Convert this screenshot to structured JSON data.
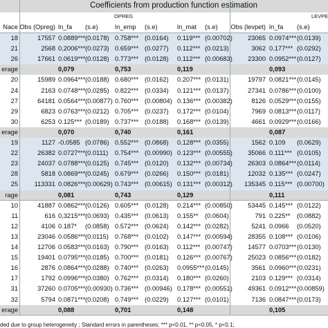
{
  "header": {
    "title": "Coefficients from production function estimation",
    "opreg": "OPREG",
    "levpet": "LEVPET",
    "columns": [
      "Nace",
      "Obs (Opreg)",
      "ln_fa",
      "(s.e)",
      "ln_emp",
      "(s.e)",
      "ln_mat",
      "(s.e)",
      "Obs (levpet)",
      "ln_fa",
      "(s.e)"
    ]
  },
  "groups": [
    {
      "rows": [
        [
          "18",
          "17557",
          "0.0889***",
          "(0.0178)",
          "0.758***",
          "(0.0164)",
          "0.119***",
          "(0.00702)",
          "23065",
          "0.0974***",
          "(0.0139)"
        ],
        [
          "21",
          "2568",
          "0,2006***",
          "(0.0273)",
          "0.659***",
          "(0.0277)",
          "0.112***",
          "(0.0213)",
          "3062",
          "0.177***",
          "(0.0292)"
        ],
        [
          "26",
          "17661",
          "0.0619***",
          "(0.0128)",
          "0.773***",
          "(0.0128)",
          "0.112***",
          "(0.00683)",
          "23300",
          "0.0952***",
          "(0.0127)"
        ]
      ],
      "average": {
        "label": "erage",
        "values": [
          "0,079",
          "0,753",
          "0,119",
          "0,093"
        ]
      }
    },
    {
      "rows": [
        [
          "20",
          "15989",
          "0.0964***",
          "(0.0188)",
          "0.680***",
          "(0.0162)",
          "0.207***",
          "(0.0131)",
          "19797",
          "0.0821***",
          "(0.0145)"
        ],
        [
          "24",
          "2163",
          "0.0748***",
          "(0.0285)",
          "0.822***",
          "(0.0334)",
          "0.121***",
          "(0.0137)",
          "27341",
          "0.0786***",
          "(0.0100)"
        ],
        [
          "27",
          "64181",
          "0.0564***",
          "(0.00877)",
          "0.760***",
          "(0.00804)",
          "0.136***",
          "(0.00382)",
          "8126",
          "0.0529***",
          "(0.0155)"
        ],
        [
          "29",
          "6823",
          "0.0763***",
          "(0.0212)",
          "0.705***",
          "(0.0237)",
          "0.172***",
          "(0.0104)",
          "7969",
          "0.0813***",
          "(0.0117)"
        ],
        [
          "30",
          "6253",
          "0.125***",
          "(0.0189)",
          "0.737***",
          "(0.0188)",
          "0.168***",
          "(0.0139)",
          "4661",
          "0.0929***",
          "(0.0166)"
        ]
      ],
      "average": {
        "label": "erage",
        "values": [
          "0,070",
          "0,740",
          "0,161",
          "0,087"
        ]
      }
    },
    {
      "rows": [
        [
          "19",
          "1127",
          "-0.0585",
          "(0.0786)",
          "0.552***",
          "(0.0868)",
          "0.128***",
          "(0.0355)",
          "1562",
          "0.109",
          "(0.0629)"
        ],
        [
          "22",
          "26382",
          "0.0727***",
          "(0.0111)",
          "0.754***",
          "(0.00990)",
          "0.123***",
          "(0.00555)",
          "35066",
          "0.111***",
          "(0.0105)"
        ],
        [
          "23",
          "24037",
          "0.0788***",
          "(0.0125)",
          "0.745***",
          "(0.0120)",
          "0.132***",
          "(0.00734)",
          "26303",
          "0.0864***",
          "(0.0114)"
        ],
        [
          "28",
          "5818",
          "0.0869***",
          "(0.0245)",
          "0.679***",
          "(0.0266)",
          "0.150***",
          "(0.0181)",
          "12032",
          "0.135***",
          "(0.0247)"
        ],
        [
          "25",
          "113331",
          "0.0826***",
          "(0.00629)",
          "0.743***",
          "(0.00615)",
          "0.131***",
          "(0.00312)",
          "135345",
          "0.115***",
          "(0.00700)"
        ]
      ],
      "average": {
        "label": "rage",
        "values": [
          "0,081",
          "0,743",
          "0,129",
          "0,111"
        ]
      }
    },
    {
      "rows": [
        [
          "10",
          "41887",
          "0.0862***",
          "(0.0126)",
          "0.605***",
          "(0.0128)",
          "0.214***",
          "(0.00850)",
          "53445",
          "0.145***",
          "(0.0122)"
        ],
        [
          "11",
          "616",
          "0,3215***",
          "(0.0693)",
          "0.435***",
          "(0.0613)",
          "0.155**",
          "(0.0604)",
          "791",
          "0.225**",
          "(0.0882)"
        ],
        [
          "12",
          "4106",
          "0.187*",
          "(0.0858)",
          "0.572***",
          "(0.0624)",
          "0.142***",
          "(0.0282)",
          "5241",
          "0.0966",
          "(0.0520)"
        ],
        [
          "13",
          "23046",
          "0.0586***",
          "(0.0115)",
          "0.768***",
          "(0.0102)",
          "0.147***",
          "(0.00594)",
          "28355",
          "0.108***",
          "(0.0106)"
        ],
        [
          "14",
          "12706",
          "0.0583***",
          "(0.0163)",
          "0.790***",
          "(0.0163)",
          "0.112***",
          "(0.00747)",
          "14577",
          "0.0703***",
          "(0.0130)"
        ],
        [
          "15",
          "19401",
          "0.0795***",
          "(0.0185)",
          "0.700***",
          "(0.0181)",
          "0.126***",
          "(0.00767)",
          "25023",
          "0.0856***",
          "(0.0182)"
        ],
        [
          "16",
          "2876",
          "0.0864***",
          "(0.0288)",
          "0.740***",
          "(0.0263)",
          "0.0955***",
          "(0.0145)",
          "3561",
          "0.0960***",
          "(0.0231)"
        ],
        [
          "17",
          "1792",
          "0.0996***",
          "(0.0380)",
          "0.762***",
          "(0.0314)",
          "0.180***",
          "(0.0260)",
          "2103",
          "0.129***",
          "(0.0314)"
        ],
        [
          "31",
          "37260",
          "0.0705***",
          "(0.00930)",
          "0.736***",
          "(0.00946)",
          "0.178***",
          "(0.00551)",
          "49361",
          "0.0912***",
          "(0.00859)"
        ],
        [
          "32",
          "5794",
          "0.0871***",
          "(0.0208)",
          "0.749***",
          "(0.0229)",
          "0.127***",
          "(0.0101)",
          "7136",
          "0.0847***",
          "(0.0173)"
        ]
      ],
      "average": {
        "label": "erage",
        "values": [
          "0,088",
          "0,701",
          "0,148",
          "0,105"
        ]
      }
    }
  ],
  "footnote": "ded due to group heterogeneity ; Standard errors in parentheses; *** p<0.01, ** p<0.05, * p<0.1;"
}
